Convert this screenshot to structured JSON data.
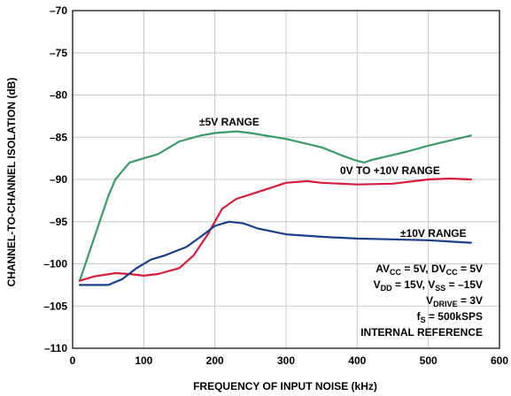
{
  "chart_data": {
    "type": "line",
    "xlabel": "FREQUENCY OF INPUT NOISE (kHz)",
    "ylabel": "CHANNEL-TO-CHANNEL ISOLATION (dB)",
    "xlim": [
      0,
      600
    ],
    "ylim": [
      -110,
      -70
    ],
    "xticks": [
      "0",
      "100",
      "200",
      "300",
      "400",
      "500",
      "600"
    ],
    "yticks": [
      "–70",
      "–75",
      "–80",
      "–85",
      "–90",
      "–95",
      "–100",
      "–105",
      "–110"
    ],
    "grid": true,
    "series": [
      {
        "name": "±5V RANGE",
        "color": "#3a9a6a",
        "x": [
          10,
          30,
          50,
          60,
          70,
          80,
          100,
          120,
          150,
          180,
          200,
          230,
          250,
          300,
          350,
          380,
          400,
          410,
          420,
          440,
          470,
          500,
          530,
          560
        ],
        "y": [
          -102,
          -97,
          -92,
          -90,
          -89,
          -88,
          -87.5,
          -87,
          -85.5,
          -84.8,
          -84.5,
          -84.3,
          -84.5,
          -85.2,
          -86.2,
          -87.2,
          -87.8,
          -88,
          -87.7,
          -87.3,
          -86.7,
          -86,
          -85.4,
          -84.8
        ]
      },
      {
        "name": "0V TO +10V RANGE",
        "color": "#d41c3c",
        "x": [
          10,
          30,
          60,
          80,
          100,
          120,
          150,
          170,
          190,
          210,
          230,
          260,
          300,
          330,
          350,
          400,
          450,
          500,
          530,
          560
        ],
        "y": [
          -102,
          -101.5,
          -101.1,
          -101.2,
          -101.4,
          -101.2,
          -100.5,
          -99,
          -96.5,
          -93.5,
          -92.3,
          -91.5,
          -90.4,
          -90.2,
          -90.4,
          -90.6,
          -90.5,
          -90,
          -89.9,
          -90
        ]
      },
      {
        "name": "±10V RANGE",
        "color": "#1a3d8a",
        "x": [
          10,
          30,
          50,
          70,
          90,
          110,
          130,
          160,
          180,
          200,
          220,
          240,
          260,
          300,
          350,
          400,
          450,
          500,
          560
        ],
        "y": [
          -102.5,
          -102.5,
          -102.5,
          -101.8,
          -100.5,
          -99.5,
          -99,
          -98,
          -96.8,
          -95.5,
          -95,
          -95.2,
          -95.8,
          -96.5,
          -96.8,
          -97,
          -97.1,
          -97.2,
          -97.5
        ]
      }
    ],
    "annotations": {
      "line1": {
        "a": "AV",
        "a_sub": "CC",
        "b": " = 5V, DV",
        "b_sub": "CC",
        "c": " = 5V"
      },
      "line2": {
        "a": "V",
        "a_sub": "DD",
        "b": " = 15V, V",
        "b_sub": "SS",
        "c": " = –15V"
      },
      "line3": {
        "a": "V",
        "a_sub": "DRIVE",
        "b": " = 3V"
      },
      "line4": {
        "a": "f",
        "a_sub": "S",
        "b": " = 500kSPS"
      },
      "line5": "INTERNAL REFERENCE"
    }
  }
}
